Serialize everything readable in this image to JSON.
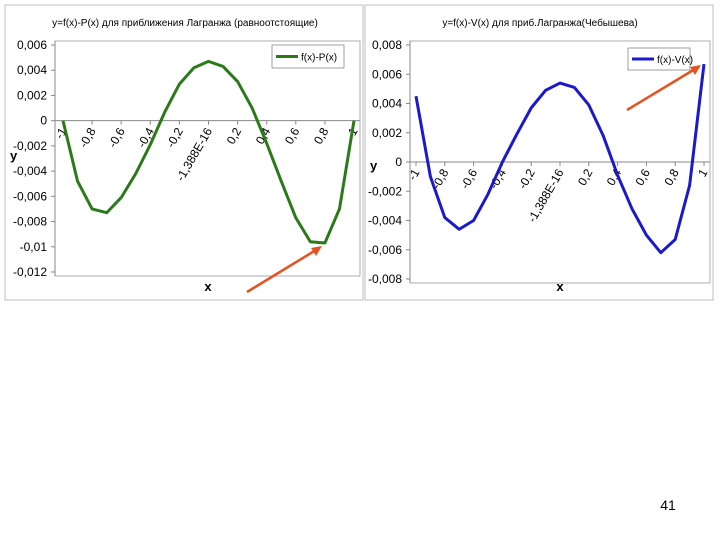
{
  "chart_data": [
    {
      "type": "line",
      "title": "y=f(x)-P(x) для приближения Лагранжа (равноотстоящие)",
      "x_label": "x",
      "y_label": "y",
      "x": [
        -1,
        -0.9,
        -0.8,
        -0.7,
        -0.6,
        -0.5,
        -0.4,
        -0.3,
        -0.2,
        -0.1,
        0,
        0.1,
        0.2,
        0.3,
        0.4,
        0.5,
        0.6,
        0.7,
        0.8,
        0.9,
        1
      ],
      "series": [
        {
          "name": "f(x)-P(x)",
          "color": "#2a7a1a",
          "values": [
            0,
            -0.0048,
            -0.007,
            -0.0073,
            -0.0061,
            -0.0042,
            -0.0019,
            0.0007,
            0.0029,
            0.0042,
            0.0047,
            0.0043,
            0.0031,
            0.001,
            -0.0018,
            -0.0048,
            -0.0077,
            -0.0096,
            -0.0097,
            -0.007,
            0
          ]
        }
      ],
      "xlim": [
        -1,
        1
      ],
      "xticks": [
        -1,
        {
          "value": -0.8,
          "label": "-0,8"
        },
        {
          "value": -0.6,
          "label": "-0,6"
        },
        {
          "value": -0.4,
          "label": "-0,4"
        },
        {
          "value": -0.2,
          "label": "-0,2"
        },
        {
          "value": -1.388e-16,
          "label": "-1,388E-16"
        },
        {
          "value": 0.2,
          "label": "0,2"
        },
        {
          "value": 0.4,
          "label": "0,4"
        },
        {
          "value": 0.6,
          "label": "0,6"
        },
        {
          "value": 0.8,
          "label": "0,8"
        },
        1
      ],
      "ylim": [
        -0.012,
        0.006
      ],
      "yticks": [
        {
          "value": 0.006,
          "label": "0,006"
        },
        {
          "value": 0.004,
          "label": "0,004"
        },
        {
          "value": 0.002,
          "label": "0,002"
        },
        0,
        {
          "value": -0.002,
          "label": "-0,002"
        },
        {
          "value": -0.004,
          "label": "-0,004"
        },
        {
          "value": -0.006,
          "label": "-0,006"
        },
        {
          "value": -0.008,
          "label": "-0,008"
        },
        {
          "value": -0.01,
          "label": "-0,01"
        },
        {
          "value": -0.012,
          "label": "-0,012"
        }
      ],
      "legend": "upper right"
    },
    {
      "type": "line",
      "title": "y=f(x)-V(x) для приб.Лагранжа(Чебышева)",
      "x_label": "x",
      "y_label": "y",
      "x": [
        -1,
        -0.9,
        -0.8,
        -0.7,
        -0.6,
        -0.5,
        -0.4,
        -0.3,
        -0.2,
        -0.1,
        0,
        0.1,
        0.2,
        0.3,
        0.4,
        0.5,
        0.6,
        0.7,
        0.8,
        0.9,
        1
      ],
      "series": [
        {
          "name": "f(x)-V(x)",
          "color": "#1a1acc",
          "values": [
            0.0045,
            -0.001,
            -0.0038,
            -0.0046,
            -0.004,
            -0.0022,
            0,
            0.0019,
            0.0037,
            0.0049,
            0.0054,
            0.0051,
            0.0039,
            0.0018,
            -0.0009,
            -0.0032,
            -0.005,
            -0.0062,
            -0.0053,
            -0.0016,
            0.0067
          ]
        }
      ],
      "xlim": [
        -1,
        1
      ],
      "xticks": [
        -1,
        {
          "value": -0.8,
          "label": "-0,8"
        },
        {
          "value": -0.6,
          "label": "-0,6"
        },
        {
          "value": -0.4,
          "label": "-0,4"
        },
        {
          "value": -0.2,
          "label": "-0,2"
        },
        {
          "value": -1.388e-16,
          "label": "-1,388E-16"
        },
        {
          "value": 0.2,
          "label": "0,2"
        },
        {
          "value": 0.4,
          "label": "0,4"
        },
        {
          "value": 0.6,
          "label": "0,6"
        },
        {
          "value": 0.8,
          "label": "0,8"
        },
        1
      ],
      "ylim": [
        -0.008,
        0.008
      ],
      "yticks": [
        {
          "value": 0.008,
          "label": "0,008"
        },
        {
          "value": 0.006,
          "label": "0,006"
        },
        {
          "value": 0.004,
          "label": "0,004"
        },
        {
          "value": 0.002,
          "label": "0,002"
        },
        0,
        {
          "value": -0.002,
          "label": "-0,002"
        },
        {
          "value": -0.004,
          "label": "-0,004"
        },
        {
          "value": -0.006,
          "label": "-0,006"
        },
        {
          "value": -0.008,
          "label": "-0,008"
        }
      ],
      "legend": "upper right"
    }
  ],
  "page_number": "41"
}
